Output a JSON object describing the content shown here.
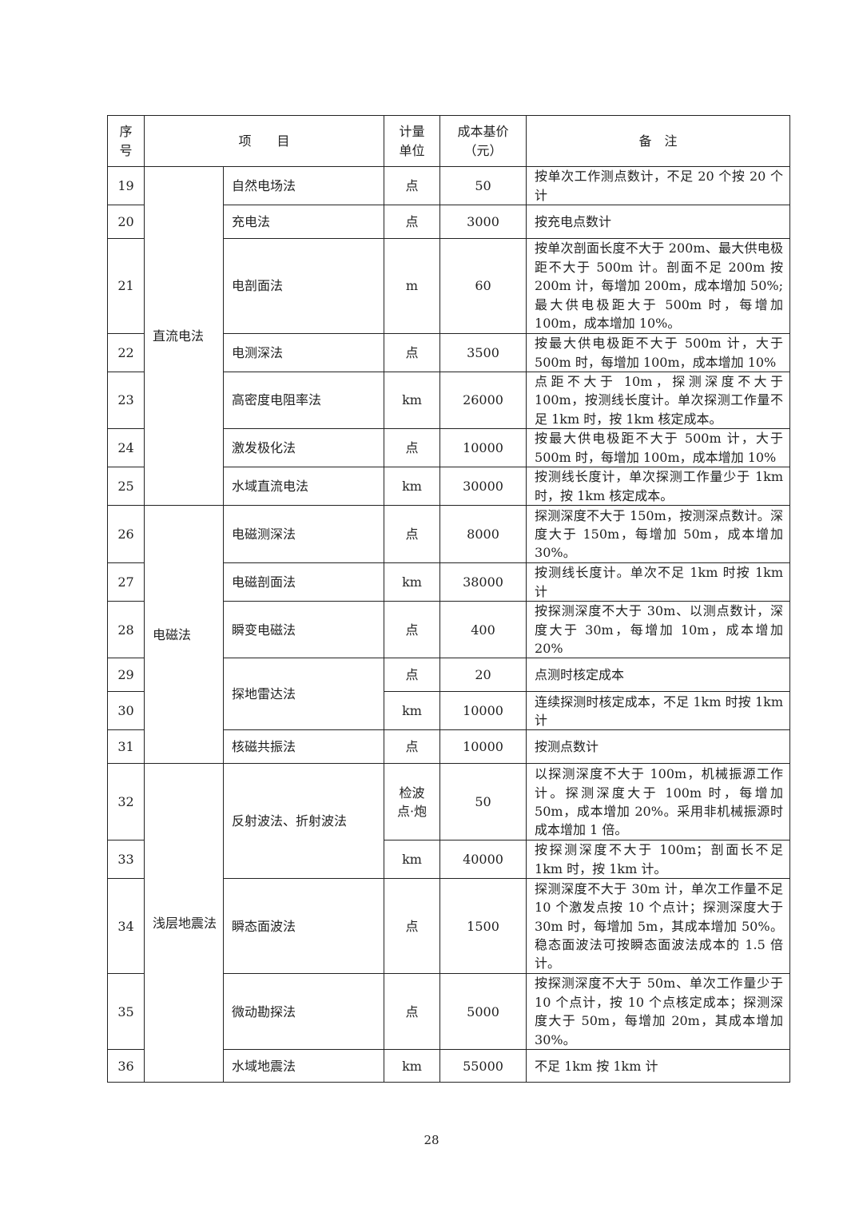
{
  "header": {
    "seq": "序\n号",
    "item": "项　　目",
    "unit": "计量\n单位",
    "price": "成本基价\n（元）",
    "remark": "备　注"
  },
  "groups": [
    "直流电法",
    "电磁法",
    "浅层地震法"
  ],
  "rows": [
    {
      "no": "19",
      "group": 0,
      "item": "自然电场法",
      "unit": "点",
      "price": "50",
      "remark": "按单次工作测点数计，不足 20 个按 20 个计"
    },
    {
      "no": "20",
      "group": 0,
      "item": "充电法",
      "unit": "点",
      "price": "3000",
      "remark": "按充电点数计"
    },
    {
      "no": "21",
      "group": 0,
      "item": "电剖面法",
      "unit": "m",
      "price": "60",
      "remark": "按单次剖面长度不大于 200m、最大供电极距不大于 500m 计。剖面不足 200m 按 200m 计，每增加 200m，成本增加 50%;最大供电极距大于 500m 时，每增加 100m，成本增加 10%。"
    },
    {
      "no": "22",
      "group": 0,
      "item": "电测深法",
      "unit": "点",
      "price": "3500",
      "remark": "按最大供电极距不大于 500m 计，大于 500m 时，每增加 100m，成本增加 10%"
    },
    {
      "no": "23",
      "group": 0,
      "item": "高密度电阻率法",
      "unit": "km",
      "price": "26000",
      "remark": "点距不大于 10m，探测深度不大于 100m，按测线长度计。单次探测工作量不足 1km 时，按 1km 核定成本。"
    },
    {
      "no": "24",
      "group": 0,
      "item": "激发极化法",
      "unit": "点",
      "price": "10000",
      "remark": "按最大供电极距不大于 500m 计，大于 500m 时，每增加 100m，成本增加 10%"
    },
    {
      "no": "25",
      "group": 0,
      "item": "水域直流电法",
      "unit": "km",
      "price": "30000",
      "remark": "按测线长度计，单次探测工作量少于 1km 时，按 1km 核定成本。"
    },
    {
      "no": "26",
      "group": 1,
      "item": "电磁测深法",
      "unit": "点",
      "price": "8000",
      "remark": "探测深度不大于 150m，按测深点数计。深度大于 150m，每增加 50m，成本增加 30%。"
    },
    {
      "no": "27",
      "group": 1,
      "item": "电磁剖面法",
      "unit": "km",
      "price": "38000",
      "remark": "按测线长度计。单次不足 1km 时按 1km 计"
    },
    {
      "no": "28",
      "group": 1,
      "item": "瞬变电磁法",
      "unit": "点",
      "price": "400",
      "remark": "按探测深度不大于 30m、以测点数计，深度大于 30m，每增加 10m，成本增加 20%"
    },
    {
      "no": "29",
      "group": 1,
      "item": "探地雷达法",
      "unit": "点",
      "price": "20",
      "remark": "点测时核定成本"
    },
    {
      "no": "30",
      "group": 1,
      "item": null,
      "unit": "km",
      "price": "10000",
      "remark": "连续探测时核定成本，不足 1km 时按 1km 计"
    },
    {
      "no": "31",
      "group": 1,
      "item": "核磁共振法",
      "unit": "点",
      "price": "10000",
      "remark": "按测点数计"
    },
    {
      "no": "32",
      "group": 2,
      "item": "反射波法、折射波法",
      "unit": "检波\n点·炮",
      "price": "50",
      "remark": "以探测深度不大于 100m，机械振源工作计。探测深度大于 100m 时，每增加 50m，成本增加 20%。采用非机械振源时成本增加 1 倍。"
    },
    {
      "no": "33",
      "group": 2,
      "item": null,
      "unit": "km",
      "price": "40000",
      "remark": "按探测深度不大于 100m；剖面长不足 1km 时，按 1km 计。"
    },
    {
      "no": "34",
      "group": 2,
      "item": "瞬态面波法",
      "unit": "点",
      "price": "1500",
      "remark": "探测深度不大于 30m 计，单次工作量不足 10 个激发点按 10 个点计；探测深度大于 30m 时，每增加 5m，其成本增加 50%。稳态面波法可按瞬态面波法成本的 1.5 倍计。"
    },
    {
      "no": "35",
      "group": 2,
      "item": "微动勘探法",
      "unit": "点",
      "price": "5000",
      "remark": "按探测深度不大于 50m、单次工作量少于 10 个点计，按 10 个点核定成本；探测深度大于 50m，每增加 20m，其成本增加 30%。"
    },
    {
      "no": "36",
      "group": 2,
      "item": "水域地震法",
      "unit": "km",
      "price": "55000",
      "remark": "不足 1km 按 1km 计"
    }
  ],
  "page_number": "28"
}
